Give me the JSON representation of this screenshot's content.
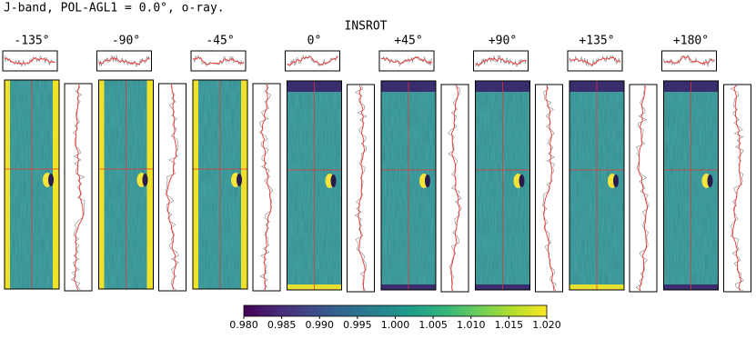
{
  "chart_data": {
    "type": "heatmap",
    "title": "J-band, POL-AGL1 = 0.0°, o-ray.",
    "xlabel": "INSROT",
    "categories": [
      "-135°",
      "-90°",
      "-45°",
      "0°",
      "+45°",
      "+90°",
      "+135°",
      "+180°"
    ],
    "colormap": "viridis",
    "clim": [
      0.98,
      1.02
    ],
    "cticks": [
      {
        "value": 0.98,
        "label": "0.980"
      },
      {
        "value": 0.985,
        "label": "0.985"
      },
      {
        "value": 0.99,
        "label": "0.990"
      },
      {
        "value": 0.995,
        "label": "0.995"
      },
      {
        "value": 1.0,
        "label": "1.000"
      },
      {
        "value": 1.005,
        "label": "1.005"
      },
      {
        "value": 1.01,
        "label": "1.010"
      },
      {
        "value": 1.015,
        "label": "1.015"
      },
      {
        "value": 1.02,
        "label": "1.020"
      }
    ]
  }
}
